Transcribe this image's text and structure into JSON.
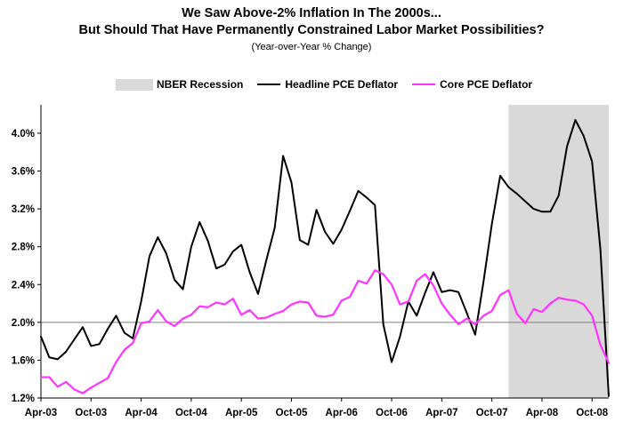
{
  "chart_data": {
    "type": "line",
    "title": [
      "We Saw Above-2% Inflation In The 2000s...",
      "But Should That Have Permanently Constrained Labor Market Possibilities?"
    ],
    "subtitle": "(Year-over-Year  % Change)",
    "legend": [
      "NBER Recession",
      "Headline PCE Deflator",
      "Core PCE Deflator"
    ],
    "x_tick_labels": [
      "Apr-03",
      "Oct-03",
      "Apr-04",
      "Oct-04",
      "Apr-05",
      "Oct-05",
      "Apr-06",
      "Oct-06",
      "Apr-07",
      "Oct-07",
      "Apr-08",
      "Oct-08"
    ],
    "y_tick_labels": [
      "1.2%",
      "1.6%",
      "2.0%",
      "2.4%",
      "2.8%",
      "3.2%",
      "3.6%",
      "4.0%"
    ],
    "ylim": [
      1.2,
      4.3
    ],
    "reference_line": 2.0,
    "recession": {
      "start_index": 56,
      "end_index": 67
    },
    "series": [
      {
        "name": "Headline PCE Deflator",
        "color": "#000000",
        "values": [
          1.85,
          1.63,
          1.61,
          1.69,
          1.82,
          1.95,
          1.75,
          1.77,
          1.93,
          2.07,
          1.89,
          1.83,
          2.22,
          2.7,
          2.9,
          2.73,
          2.45,
          2.35,
          2.8,
          3.06,
          2.86,
          2.57,
          2.61,
          2.75,
          2.82,
          2.53,
          2.3,
          2.66,
          3.0,
          3.76,
          3.48,
          2.87,
          2.82,
          3.19,
          2.96,
          2.83,
          2.98,
          3.18,
          3.39,
          3.32,
          3.24,
          1.98,
          1.58,
          1.85,
          2.22,
          2.07,
          2.31,
          2.53,
          2.32,
          2.34,
          2.32,
          2.1,
          1.87,
          2.43,
          3.04,
          3.55,
          3.43,
          3.36,
          3.28,
          3.2,
          3.17,
          3.17,
          3.34,
          3.86,
          4.14,
          3.97,
          3.7,
          2.77,
          1.22
        ]
      },
      {
        "name": "Core PCE Deflator",
        "color": "#ff33ff",
        "values": [
          1.42,
          1.42,
          1.32,
          1.37,
          1.29,
          1.25,
          1.31,
          1.36,
          1.41,
          1.58,
          1.71,
          1.78,
          1.99,
          2.01,
          2.13,
          2.01,
          1.96,
          2.04,
          2.08,
          2.17,
          2.16,
          2.21,
          2.19,
          2.25,
          2.08,
          2.13,
          2.04,
          2.05,
          2.09,
          2.12,
          2.19,
          2.22,
          2.21,
          2.07,
          2.06,
          2.08,
          2.23,
          2.27,
          2.44,
          2.41,
          2.55,
          2.51,
          2.4,
          2.19,
          2.22,
          2.44,
          2.51,
          2.39,
          2.2,
          2.08,
          1.98,
          2.04,
          1.98,
          2.07,
          2.12,
          2.29,
          2.34,
          2.09,
          1.99,
          2.14,
          2.11,
          2.2,
          2.26,
          2.24,
          2.23,
          2.19,
          2.07,
          1.76,
          1.57
        ]
      }
    ]
  }
}
